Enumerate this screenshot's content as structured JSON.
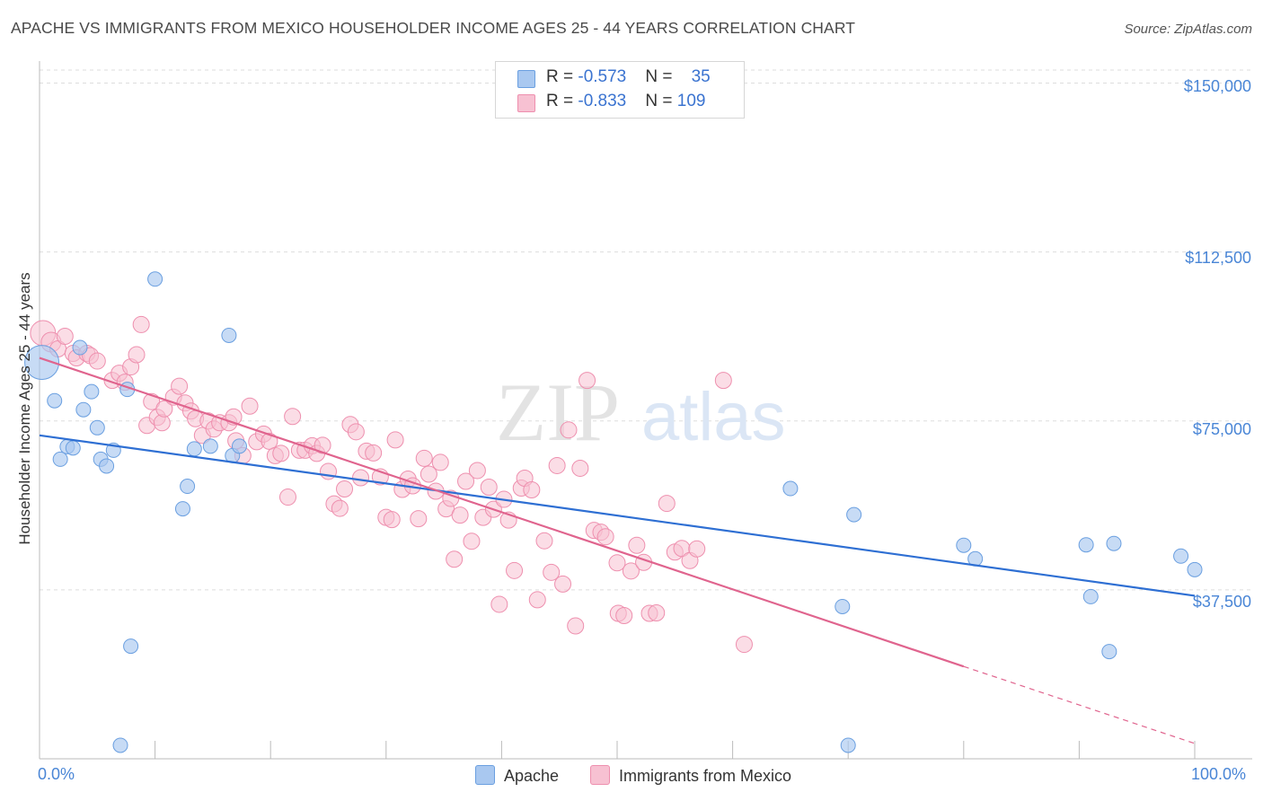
{
  "title": "APACHE VS IMMIGRANTS FROM MEXICO HOUSEHOLDER INCOME AGES 25 - 44 YEARS CORRELATION CHART",
  "source": "Source: ZipAtlas.com",
  "watermark": {
    "zip": "ZIP",
    "atlas": "atlas"
  },
  "colors": {
    "apache_fill": "#a9c8f0",
    "apache_stroke": "#6a9fe0",
    "apache_line": "#2e6fd3",
    "mexico_fill": "#f7c1d2",
    "mexico_stroke": "#ee8fae",
    "mexico_line": "#e0648e",
    "axis_text": "#4a86d6",
    "grid": "#dddddd"
  },
  "legend": {
    "rows": [
      {
        "r_label": "R = ",
        "r_value": "-0.573",
        "n_label": "N = ",
        "n_value": "35"
      },
      {
        "r_label": "R = ",
        "r_value": "-0.833",
        "n_label": "N = ",
        "n_value": "109"
      }
    ]
  },
  "bottom_legend": {
    "apache": "Apache",
    "mexico": "Immigrants from Mexico"
  },
  "chart_data": {
    "type": "scatter",
    "xlabel": "",
    "ylabel": "Householder Income Ages 25 - 44 years",
    "x_tick_labels": [
      "0.0%",
      "100.0%"
    ],
    "y_tick_labels": [
      "$37,500",
      "$75,000",
      "$112,500",
      "$150,000"
    ],
    "y_ticks": [
      37500,
      75000,
      112500,
      150000
    ],
    "xlim": [
      0,
      100
    ],
    "ylim": [
      0,
      153500
    ],
    "grid": true,
    "legend_position": "top-center",
    "series": [
      {
        "name": "Apache",
        "trend": {
          "x": [
            0,
            100
          ],
          "y": [
            71800,
            36200
          ]
        },
        "points": [
          [
            0.2,
            88000
          ],
          [
            1.3,
            79500
          ],
          [
            1.8,
            66500
          ],
          [
            2.4,
            69300
          ],
          [
            2.9,
            69000
          ],
          [
            3.5,
            91300
          ],
          [
            3.8,
            77500
          ],
          [
            4.5,
            81500
          ],
          [
            5.0,
            73500
          ],
          [
            5.3,
            66500
          ],
          [
            5.8,
            65000
          ],
          [
            6.4,
            68500
          ],
          [
            7.6,
            82000
          ],
          [
            7.9,
            25000
          ],
          [
            10.0,
            106500
          ],
          [
            12.4,
            55500
          ],
          [
            12.8,
            60500
          ],
          [
            13.4,
            68800
          ],
          [
            14.8,
            69400
          ],
          [
            16.4,
            94000
          ],
          [
            16.7,
            67300
          ],
          [
            17.3,
            69400
          ],
          [
            7.0,
            3000
          ],
          [
            65.0,
            60000
          ],
          [
            69.5,
            33800
          ],
          [
            70.5,
            54200
          ],
          [
            80.0,
            47400
          ],
          [
            81.0,
            44400
          ],
          [
            90.6,
            47500
          ],
          [
            91.0,
            36000
          ],
          [
            92.6,
            23800
          ],
          [
            93.0,
            47800
          ],
          [
            98.8,
            45000
          ],
          [
            100.0,
            42000
          ],
          [
            70.0,
            3000
          ]
        ]
      },
      {
        "name": "Immigrants from Mexico",
        "trend": {
          "x": [
            0,
            80
          ],
          "y": [
            89000,
            20500
          ]
        },
        "trend_dashed": {
          "x": [
            80,
            100
          ],
          "y": [
            20500,
            3400
          ]
        },
        "points": [
          [
            0.3,
            94500
          ],
          [
            1.0,
            92500
          ],
          [
            1.6,
            91000
          ],
          [
            2.2,
            93800
          ],
          [
            2.9,
            90000
          ],
          [
            3.2,
            89000
          ],
          [
            4.1,
            90000
          ],
          [
            4.4,
            89500
          ],
          [
            5.0,
            88300
          ],
          [
            6.3,
            84000
          ],
          [
            6.9,
            85600
          ],
          [
            7.4,
            83600
          ],
          [
            7.9,
            87000
          ],
          [
            8.4,
            89700
          ],
          [
            8.8,
            96400
          ],
          [
            9.3,
            74000
          ],
          [
            9.7,
            79300
          ],
          [
            10.2,
            75800
          ],
          [
            10.6,
            74600
          ],
          [
            10.8,
            77700
          ],
          [
            11.6,
            80300
          ],
          [
            12.1,
            82700
          ],
          [
            12.6,
            79000
          ],
          [
            13.1,
            77200
          ],
          [
            13.5,
            75500
          ],
          [
            14.1,
            71800
          ],
          [
            14.6,
            75000
          ],
          [
            15.1,
            73200
          ],
          [
            15.6,
            74600
          ],
          [
            16.4,
            74600
          ],
          [
            16.8,
            75900
          ],
          [
            17.0,
            70600
          ],
          [
            17.6,
            67300
          ],
          [
            18.2,
            78300
          ],
          [
            18.8,
            70400
          ],
          [
            19.4,
            72100
          ],
          [
            19.9,
            70500
          ],
          [
            20.4,
            67300
          ],
          [
            20.9,
            67800
          ],
          [
            21.5,
            58100
          ],
          [
            21.9,
            76000
          ],
          [
            22.5,
            68500
          ],
          [
            23.0,
            68500
          ],
          [
            23.6,
            69500
          ],
          [
            24.0,
            67800
          ],
          [
            24.5,
            69600
          ],
          [
            25.0,
            63800
          ],
          [
            25.5,
            56600
          ],
          [
            26.0,
            55600
          ],
          [
            26.4,
            59900
          ],
          [
            26.9,
            74200
          ],
          [
            27.4,
            72600
          ],
          [
            27.8,
            62400
          ],
          [
            28.3,
            68300
          ],
          [
            28.9,
            67900
          ],
          [
            29.5,
            62600
          ],
          [
            30.0,
            53600
          ],
          [
            30.5,
            53100
          ],
          [
            30.8,
            70800
          ],
          [
            31.4,
            59800
          ],
          [
            31.9,
            62100
          ],
          [
            32.3,
            60600
          ],
          [
            32.8,
            53300
          ],
          [
            33.3,
            66700
          ],
          [
            33.7,
            63200
          ],
          [
            34.3,
            59400
          ],
          [
            34.7,
            65800
          ],
          [
            35.2,
            55500
          ],
          [
            35.6,
            57800
          ],
          [
            35.9,
            44300
          ],
          [
            36.4,
            54100
          ],
          [
            36.9,
            61600
          ],
          [
            37.4,
            48300
          ],
          [
            37.9,
            64000
          ],
          [
            38.4,
            53600
          ],
          [
            38.9,
            60300
          ],
          [
            39.3,
            55400
          ],
          [
            39.8,
            34300
          ],
          [
            40.2,
            57600
          ],
          [
            40.6,
            53000
          ],
          [
            41.1,
            41800
          ],
          [
            41.7,
            60100
          ],
          [
            42.0,
            62300
          ],
          [
            42.6,
            59700
          ],
          [
            43.1,
            35300
          ],
          [
            43.7,
            48400
          ],
          [
            44.3,
            41400
          ],
          [
            44.8,
            65100
          ],
          [
            45.3,
            38800
          ],
          [
            45.8,
            73000
          ],
          [
            46.4,
            29500
          ],
          [
            46.8,
            64500
          ],
          [
            47.4,
            84000
          ],
          [
            48.0,
            50700
          ],
          [
            48.6,
            50300
          ],
          [
            49.0,
            49300
          ],
          [
            50.1,
            32300
          ],
          [
            50.6,
            31800
          ],
          [
            51.2,
            41700
          ],
          [
            51.7,
            47400
          ],
          [
            52.3,
            43600
          ],
          [
            52.8,
            32300
          ],
          [
            53.4,
            32400
          ],
          [
            54.3,
            56700
          ],
          [
            55.0,
            45900
          ],
          [
            55.6,
            46700
          ],
          [
            56.3,
            44000
          ],
          [
            56.9,
            46600
          ],
          [
            59.2,
            84000
          ],
          [
            61.0,
            25400
          ],
          [
            50.0,
            43500
          ]
        ]
      }
    ]
  }
}
